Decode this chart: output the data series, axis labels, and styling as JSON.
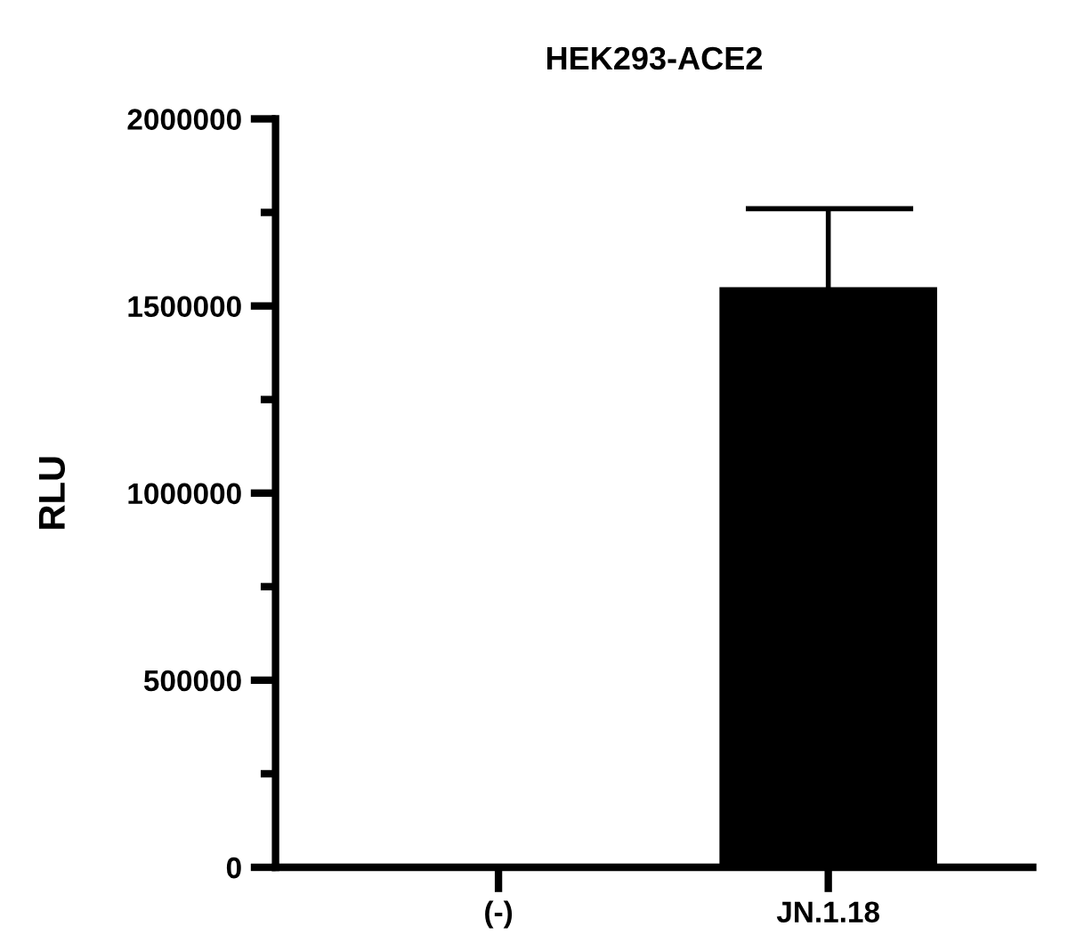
{
  "chart_data": {
    "type": "bar",
    "title": "HEK293-ACE2",
    "ylabel": "RLU",
    "categories": [
      "(-)",
      "JN.1.18"
    ],
    "values": [
      0,
      1550000
    ],
    "errors": [
      null,
      [
        1550000,
        1760000
      ]
    ],
    "color": "#000000",
    "ylim": [
      0,
      2000000
    ],
    "yticks": [
      0,
      500000,
      1000000,
      1500000,
      2000000
    ],
    "grid": false,
    "legend": false
  }
}
